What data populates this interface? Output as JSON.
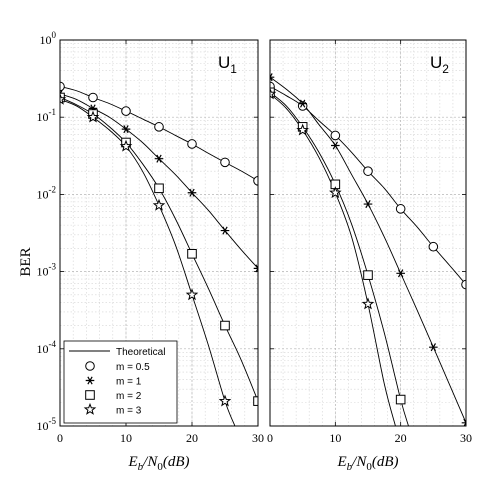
{
  "chart_data": [
    {
      "type": "line",
      "title": "U1",
      "xlabel": "Eb/N0(dB)",
      "ylabel": "BER",
      "yscale": "log",
      "xlim": [
        0,
        30
      ],
      "ylim": [
        1e-05,
        1
      ],
      "x_ticks": [
        "0",
        "10",
        "20",
        "30"
      ],
      "y_ticks": [
        "10^0",
        "10^-1",
        "10^-2",
        "10^-3",
        "10^-4",
        "10^-5"
      ],
      "grid": "on",
      "legend_position": "bottom-left",
      "series": [
        {
          "name": "m = 0.5",
          "marker": "circle",
          "curve": {
            "x": [
              0,
              2.5,
              5,
              7.5,
              10,
              12.5,
              15,
              17.5,
              20,
              22.5,
              25,
              27.5,
              30
            ],
            "y": [
              0.25,
              0.22,
              0.18,
              0.15,
              0.12,
              0.095,
              0.075,
              0.058,
              0.045,
              0.034,
              0.026,
              0.02,
              0.015
            ]
          },
          "markers": {
            "x": [
              0,
              5,
              10,
              15,
              20,
              25,
              30
            ],
            "y": [
              0.25,
              0.18,
              0.12,
              0.075,
              0.045,
              0.026,
              0.015
            ]
          }
        },
        {
          "name": "m = 1",
          "marker": "asterisk",
          "curve": {
            "x": [
              0,
              2.5,
              5,
              7.5,
              10,
              12.5,
              15,
              17.5,
              20,
              22.5,
              25,
              27.5,
              30
            ],
            "y": [
              0.2,
              0.17,
              0.13,
              0.1,
              0.07,
              0.047,
              0.029,
              0.018,
              0.0105,
              0.0062,
              0.0034,
              0.0019,
              0.0011
            ]
          },
          "markers": {
            "x": [
              0,
              5,
              10,
              15,
              20,
              25,
              30
            ],
            "y": [
              0.2,
              0.13,
              0.07,
              0.029,
              0.0105,
              0.0034,
              0.0011
            ]
          }
        },
        {
          "name": "m = 2",
          "marker": "square",
          "curve": {
            "x": [
              0,
              2.5,
              5,
              7.5,
              10,
              12.5,
              15,
              17.5,
              20,
              22.5,
              25,
              27.5,
              30
            ],
            "y": [
              0.18,
              0.145,
              0.11,
              0.075,
              0.047,
              0.025,
              0.012,
              0.0048,
              0.0017,
              0.0006,
              0.0002,
              7e-05,
              2.1e-05
            ]
          },
          "markers": {
            "x": [
              0,
              5,
              10,
              15,
              20,
              25,
              30
            ],
            "y": [
              0.18,
              0.11,
              0.047,
              0.012,
              0.0017,
              0.0002,
              2.1e-05
            ]
          }
        },
        {
          "name": "m = 3",
          "marker": "star",
          "curve": {
            "x": [
              0,
              2.5,
              5,
              7.5,
              10,
              12.5,
              15,
              17.5,
              20,
              22.5,
              25,
              26.5
            ],
            "y": [
              0.17,
              0.14,
              0.1,
              0.068,
              0.042,
              0.02,
              0.0072,
              0.0022,
              0.0005,
              0.00011,
              2.1e-05,
              1e-05
            ]
          },
          "markers": {
            "x": [
              0,
              5,
              10,
              15,
              20,
              25
            ],
            "y": [
              0.17,
              0.1,
              0.042,
              0.0072,
              0.0005,
              2.1e-05
            ]
          }
        }
      ],
      "legend": {
        "theoretical_label": "Theoretical",
        "entries": [
          {
            "label": "m = 0.5",
            "marker": "circle"
          },
          {
            "label": "m = 1",
            "marker": "asterisk"
          },
          {
            "label": "m = 2",
            "marker": "square"
          },
          {
            "label": "m = 3",
            "marker": "star"
          }
        ]
      }
    },
    {
      "type": "line",
      "title": "U2",
      "xlabel": "Eb/N0(dB)",
      "ylabel": "",
      "yscale": "log",
      "xlim": [
        0,
        30
      ],
      "ylim": [
        1e-05,
        1
      ],
      "x_ticks": [
        "0",
        "10",
        "20",
        "30"
      ],
      "grid": "on",
      "series": [
        {
          "name": "m = 0.5",
          "marker": "circle",
          "curve": {
            "x": [
              0,
              2.5,
              5,
              7.5,
              10,
              12.5,
              15,
              17.5,
              20,
              22.5,
              25,
              27.5,
              30
            ],
            "y": [
              0.25,
              0.19,
              0.14,
              0.09,
              0.058,
              0.035,
              0.02,
              0.012,
              0.0065,
              0.0038,
              0.0021,
              0.0012,
              0.00068
            ]
          },
          "markers": {
            "x": [
              0,
              5,
              10,
              15,
              20,
              25,
              30
            ],
            "y": [
              0.25,
              0.14,
              0.058,
              0.02,
              0.0065,
              0.0021,
              0.00068
            ]
          }
        },
        {
          "name": "m = 1",
          "marker": "asterisk",
          "curve": {
            "x": [
              0,
              2.5,
              5,
              7.5,
              10,
              12.5,
              15,
              17.5,
              20,
              22.5,
              25,
              27.5,
              30
            ],
            "y": [
              0.33,
              0.23,
              0.15,
              0.08,
              0.043,
              0.018,
              0.0075,
              0.0028,
              0.00095,
              0.00032,
              0.000105,
              3.4e-05,
              1.1e-05
            ]
          },
          "markers": {
            "x": [
              0,
              5,
              10,
              15,
              20,
              25,
              30
            ],
            "y": [
              0.33,
              0.15,
              0.043,
              0.0075,
              0.00095,
              0.000105,
              1.1e-05
            ]
          }
        },
        {
          "name": "m = 2",
          "marker": "square",
          "curve": {
            "x": [
              0,
              2.5,
              5,
              7.5,
              10,
              12.5,
              15,
              17.5,
              20,
              21.2
            ],
            "y": [
              0.21,
              0.14,
              0.075,
              0.035,
              0.0135,
              0.0041,
              0.0009,
              0.00016,
              2.2e-05,
              1e-05
            ]
          },
          "markers": {
            "x": [
              0,
              5,
              10,
              15,
              20
            ],
            "y": [
              0.21,
              0.075,
              0.0135,
              0.0009,
              2.2e-05
            ]
          }
        },
        {
          "name": "m = 3",
          "marker": "star",
          "curve": {
            "x": [
              0,
              2.5,
              5,
              7.5,
              10,
              12.5,
              15,
              17.5,
              19.2
            ],
            "y": [
              0.2,
              0.13,
              0.068,
              0.03,
              0.0105,
              0.0028,
              0.00038,
              3.5e-05,
              1e-05
            ]
          },
          "markers": {
            "x": [
              0,
              5,
              10,
              15
            ],
            "y": [
              0.2,
              0.068,
              0.0105,
              0.00038
            ]
          }
        }
      ]
    }
  ]
}
